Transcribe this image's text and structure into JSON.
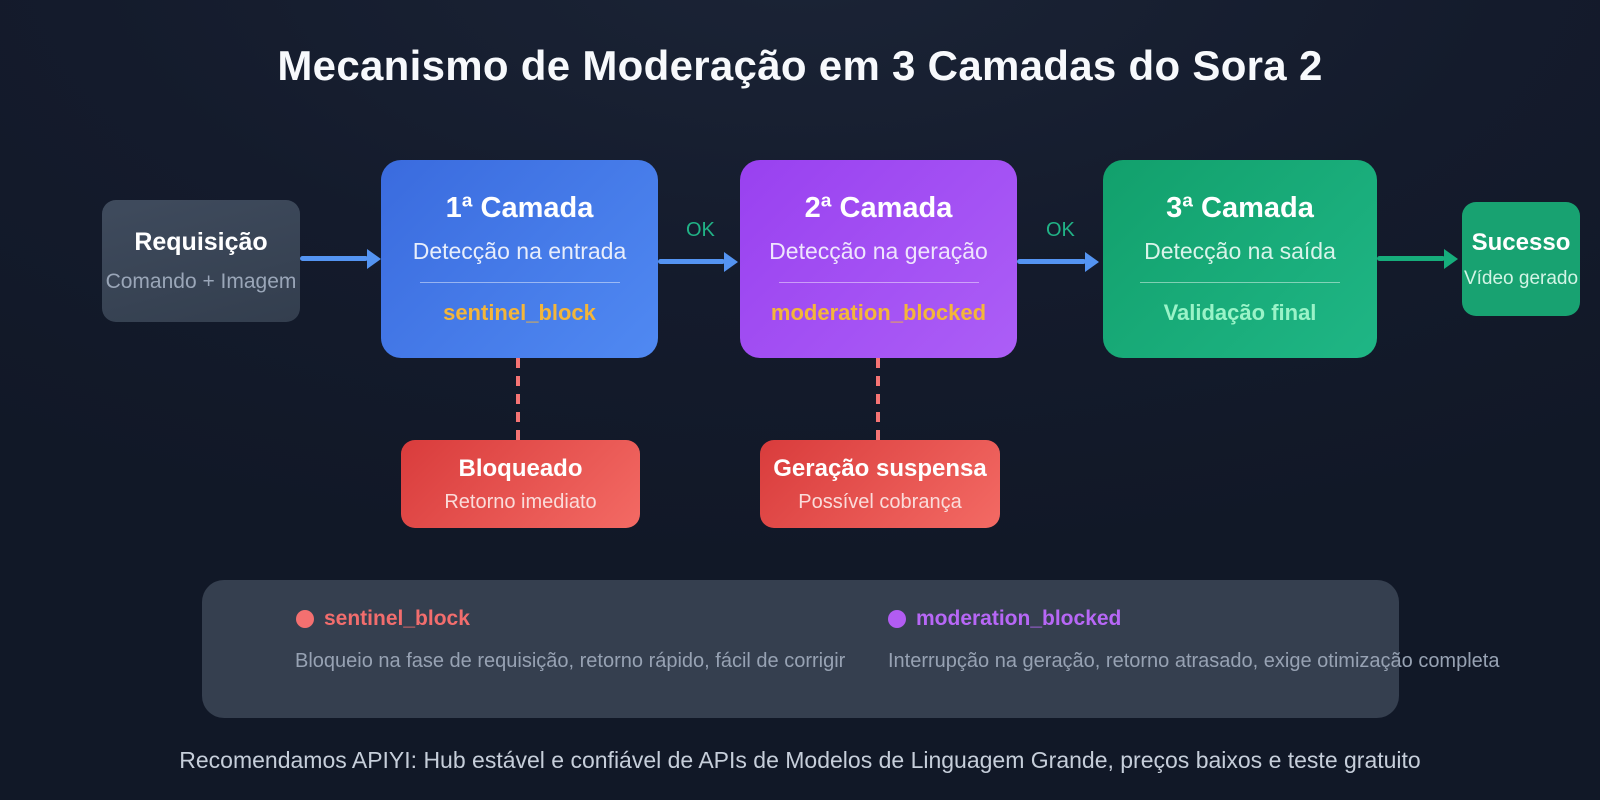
{
  "title": "Mecanismo de Moderação em 3 Camadas do Sora 2",
  "flow": {
    "request": {
      "title": "Requisição",
      "subtitle": "Comando + Imagem"
    },
    "ok_label": "OK",
    "layers": [
      {
        "title": "1ª Camada",
        "subtitle": "Detecção na entrada",
        "code": "sentinel_block"
      },
      {
        "title": "2ª Camada",
        "subtitle": "Detecção na geração",
        "code": "moderation_blocked"
      },
      {
        "title": "3ª Camada",
        "subtitle": "Detecção na saída",
        "code": "Validação final"
      }
    ],
    "success": {
      "title": "Sucesso",
      "subtitle": "Vídeo gerado"
    },
    "failure_nodes": [
      {
        "title": "Bloqueado",
        "subtitle": "Retorno imediato"
      },
      {
        "title": "Geração suspensa",
        "subtitle": "Possível cobrança"
      }
    ]
  },
  "legend": {
    "items": [
      {
        "code": "sentinel_block",
        "description": "Bloqueio na fase de requisição, retorno rápido, fácil de corrigir",
        "color": "#f26d6d"
      },
      {
        "code": "moderation_blocked",
        "description": "Interrupção na geração, retorno atrasado, exige otimização completa",
        "color": "#b767f6"
      }
    ]
  },
  "footer": "Recomendamos APIYI: Hub estável e confiável de APIs de Modelos de Linguagem Grande, preços baixos e teste gratuito",
  "colors": {
    "background": "#141b2c",
    "layer1_blue": "#3f72e3",
    "layer2_purple": "#a150f3",
    "layer3_green": "#17a775",
    "success_green": "#18a271",
    "blocked_red": "#e44f4b",
    "code_yellow": "#f4b63a",
    "final_mint": "#9af3c8",
    "ok_green": "#21b286",
    "arrow_blue": "#5494f2",
    "arrow_green": "#16ad7b",
    "dashed_red": "#f57474",
    "legend_panel": "#353f4f"
  }
}
